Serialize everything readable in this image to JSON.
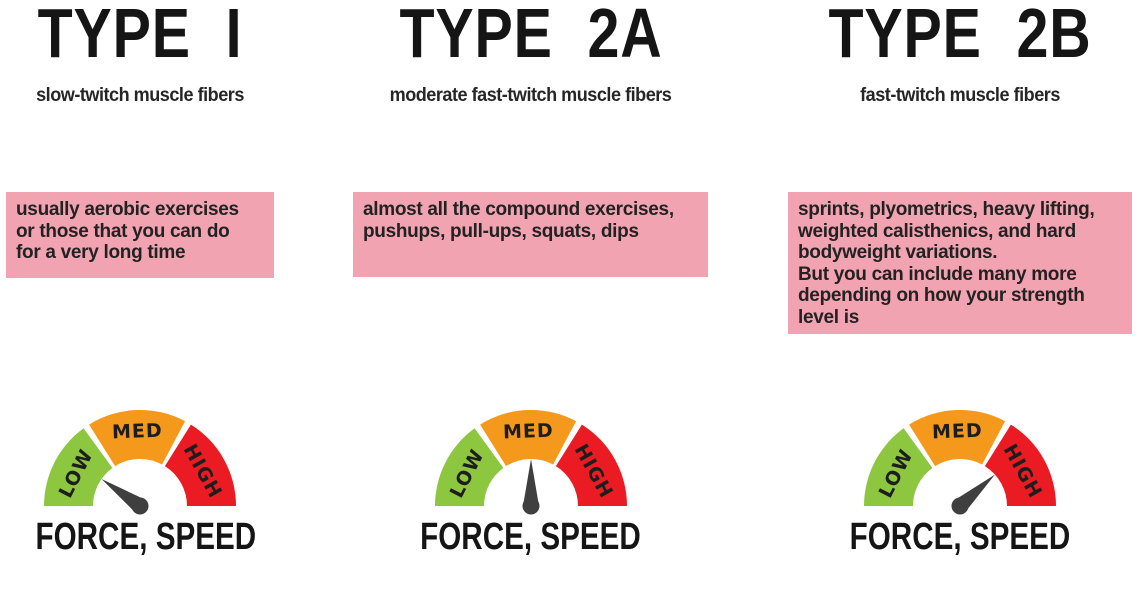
{
  "columns": [
    {
      "title": "TYPE I",
      "subtitle": "slow-twitch muscle fibers",
      "note": "usually aerobic exercises\nor those that you can do\nfor a very long time",
      "gauge": {
        "caption": "FORCE, SPEED",
        "needle_deg": 145,
        "reading": "LOW"
      }
    },
    {
      "title": "TYPE 2A",
      "subtitle": "moderate fast-twitch muscle fibers",
      "note": "almost all the compound exercises,\npushups, pull-ups, squats, dips",
      "gauge": {
        "caption": "FORCE, SPEED",
        "needle_deg": 90,
        "reading": "MED"
      }
    },
    {
      "title": "TYPE 2B",
      "subtitle": "fast-twitch muscle fibers",
      "note": "sprints, plyometrics, heavy lifting,\nweighted calisthenics, and hard\nbodyweight variations.\nBut you can include many more\ndepending on how your strength\nlevel is",
      "gauge": {
        "caption": "FORCE, SPEED",
        "needle_deg": 42,
        "reading": "HIGH"
      }
    }
  ],
  "gauge_common": {
    "segments": [
      {
        "label": "LOW",
        "color": "#8dc63f",
        "start": 180,
        "end": 126
      },
      {
        "label": "MED",
        "color": "#f5991d",
        "start": 122,
        "end": 62
      },
      {
        "label": "HIGH",
        "color": "#ea1b22",
        "start": 58,
        "end": 0
      }
    ],
    "needle_color": "#3f3f3f",
    "label_color": "#1d1d1d"
  },
  "colors": {
    "background": "#ffffff",
    "note_background": "#f2a3b1",
    "heading_text": "#151515",
    "note_text": "#222222"
  }
}
